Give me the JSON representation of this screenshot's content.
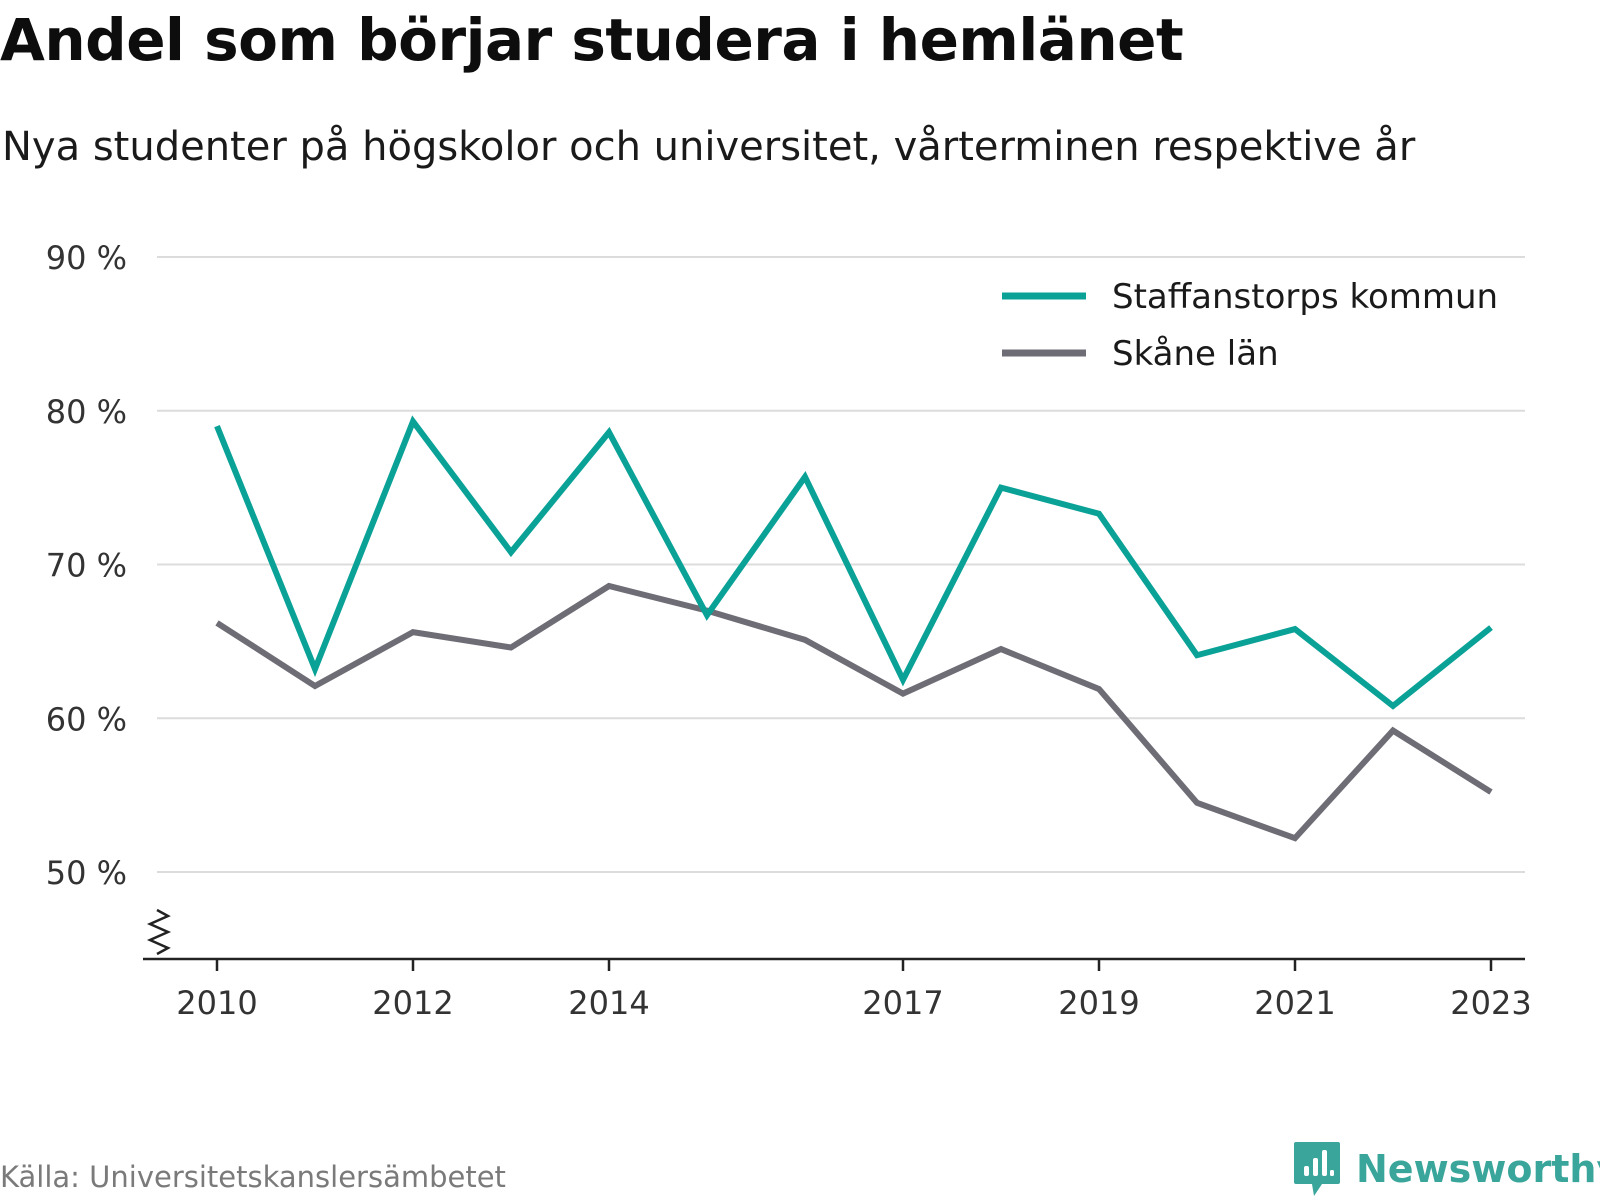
{
  "title": "Andel som börjar studera i hemlänet",
  "subtitle": "Nya studenter på högskolor och universitet, vårterminen respektive år",
  "source": "Källa: Universitetskanslersämbetet",
  "brand": {
    "name": "Newsworthy",
    "icon": "newsworthy-logo-icon",
    "color": "#3aa59a"
  },
  "chart_data": {
    "type": "line",
    "x": [
      2010,
      2011,
      2012,
      2013,
      2014,
      2015,
      2016,
      2017,
      2018,
      2019,
      2020,
      2021,
      2022,
      2023
    ],
    "x_ticks": [
      2010,
      2012,
      2014,
      2017,
      2019,
      2021,
      2023
    ],
    "x_tick_labels": [
      "2010",
      "2012",
      "2014",
      "2017",
      "2019",
      "2021",
      "2023"
    ],
    "y_ticks": [
      50,
      60,
      70,
      80,
      90
    ],
    "y_tick_labels": [
      "50 %",
      "60 %",
      "70 %",
      "80 %",
      "90 %"
    ],
    "ylim": [
      44.5,
      90
    ],
    "xlim": [
      2009.4,
      2023.7
    ],
    "y_axis_break": true,
    "grid": true,
    "legend_position": "top-right",
    "series": [
      {
        "name": "Staffanstorps kommun",
        "color": "#0aa297",
        "values": [
          79.0,
          63.2,
          79.3,
          70.8,
          78.6,
          66.7,
          75.7,
          62.5,
          75.0,
          73.3,
          64.1,
          65.8,
          60.8,
          65.9
        ]
      },
      {
        "name": "Skåne län",
        "color": "#6e6d76",
        "values": [
          66.2,
          62.1,
          65.6,
          64.6,
          68.6,
          67.0,
          65.1,
          61.6,
          64.5,
          61.9,
          54.5,
          52.2,
          59.2,
          55.2
        ]
      }
    ]
  }
}
